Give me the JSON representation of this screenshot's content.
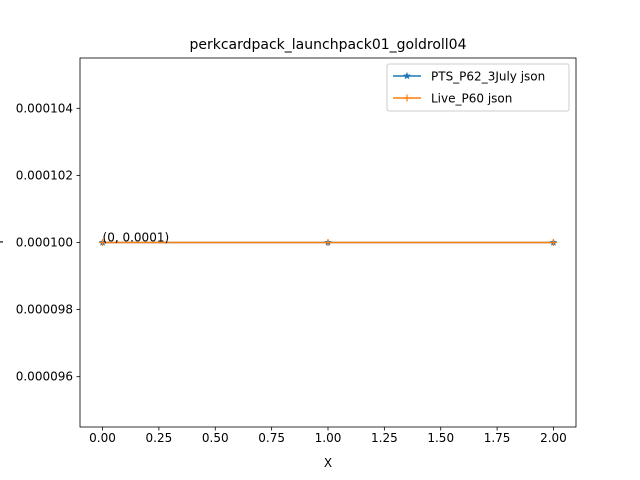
{
  "chart_data": {
    "type": "line",
    "title": "perkcardpack_launchpack01_goldroll04",
    "xlabel": "X",
    "ylabel": "Y",
    "xlim": [
      -0.1,
      2.1
    ],
    "ylim": [
      9.45e-05,
      0.0001055
    ],
    "xticks": [
      0.0,
      0.25,
      0.5,
      0.75,
      1.0,
      1.25,
      1.5,
      1.75,
      2.0
    ],
    "xtick_labels": [
      "0.00",
      "0.25",
      "0.50",
      "0.75",
      "1.00",
      "1.25",
      "1.50",
      "1.75",
      "2.00"
    ],
    "yticks": [
      9.6e-05,
      9.8e-05,
      0.0001,
      0.000102,
      0.000104
    ],
    "ytick_labels": [
      "0.000096",
      "0.000098",
      "0.000100",
      "0.000102",
      "0.000104"
    ],
    "grid": false,
    "legend_position": "upper right",
    "series": [
      {
        "name": "PTS_P62_3July json",
        "x": [
          0,
          1,
          2
        ],
        "y": [
          0.0001,
          0.0001,
          0.0001
        ],
        "color": "#1f77b4",
        "marker": "star"
      },
      {
        "name": "Live_P60 json",
        "x": [
          0,
          1,
          2
        ],
        "y": [
          0.0001,
          0.0001,
          0.0001
        ],
        "color": "#ff7f0e",
        "marker": "plus"
      }
    ],
    "annotations": [
      {
        "text": "(0, 0.0001)",
        "x": 0,
        "y": 0.0001
      }
    ]
  }
}
